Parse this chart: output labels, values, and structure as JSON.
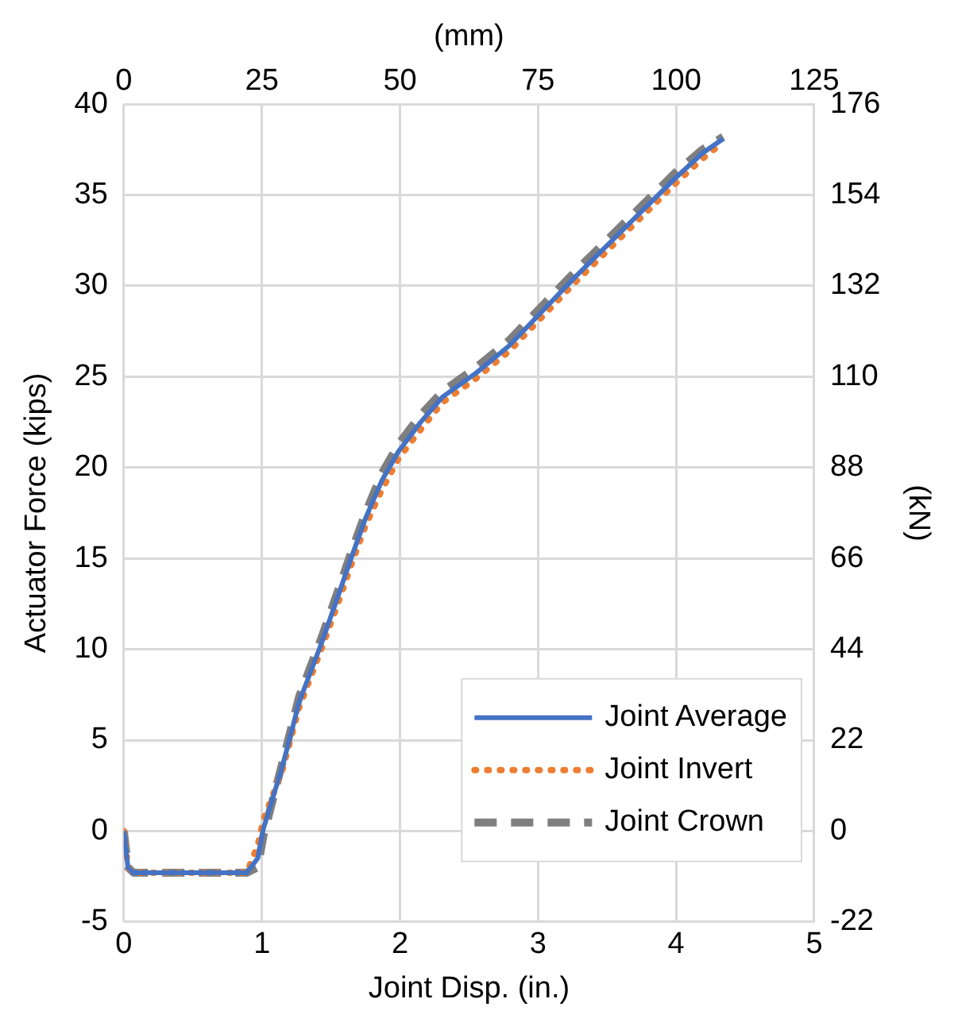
{
  "chart_data": {
    "type": "line",
    "xlabel": "Joint Disp. (in.)",
    "ylabel": "Actuator Force (kips)",
    "x2label": "(mm)",
    "y2label": "(kN)",
    "x": [
      0,
      0.03,
      0.07,
      0.3,
      0.6,
      0.89,
      0.97,
      1.01,
      1.15,
      1.27,
      1.43,
      1.55,
      1.65,
      1.75,
      1.87,
      1.99,
      2.15,
      2.31,
      2.55,
      2.79,
      3.03,
      3.27,
      3.51,
      3.75,
      3.99,
      4.19,
      4.34
    ],
    "series": [
      {
        "name": "Joint Average",
        "color": "#4472c4",
        "line_style": "solid",
        "values": [
          0,
          -2.0,
          -2.3,
          -2.3,
          -2.3,
          -2.3,
          -1.5,
          0.1,
          3.6,
          7.1,
          10.3,
          12.9,
          15.1,
          17.2,
          19.3,
          20.9,
          22.5,
          23.9,
          25.2,
          26.7,
          28.6,
          30.5,
          32.3,
          34.1,
          35.9,
          37.3,
          38.1
        ]
      },
      {
        "name": "Joint Invert",
        "color": "#ed7d31",
        "line_style": "dotted",
        "values": [
          0,
          -2.0,
          -2.3,
          -2.3,
          -2.3,
          -2.3,
          -0.8,
          0.6,
          3.4,
          6.8,
          10.0,
          12.5,
          14.7,
          16.8,
          18.8,
          20.5,
          22.1,
          23.6,
          24.9,
          26.4,
          28.3,
          30.2,
          32.0,
          33.8,
          35.6,
          37.0,
          37.9
        ]
      },
      {
        "name": "Joint Crown",
        "color": "#7f7f7f",
        "line_style": "dashed",
        "values": [
          0,
          -2.0,
          -2.3,
          -2.3,
          -2.3,
          -2.3,
          -2.0,
          -0.3,
          3.8,
          7.4,
          10.6,
          13.2,
          15.4,
          17.5,
          19.7,
          21.3,
          22.9,
          24.2,
          25.5,
          27.0,
          28.9,
          30.8,
          32.6,
          34.4,
          36.2,
          37.5,
          38.2
        ]
      }
    ],
    "xlim": [
      0,
      5
    ],
    "xticks": [
      0,
      1,
      2,
      3,
      4,
      5
    ],
    "ylim": [
      -5,
      40
    ],
    "yticks": [
      -5,
      0,
      5,
      10,
      15,
      20,
      25,
      30,
      35,
      40
    ],
    "x2lim": [
      0,
      125
    ],
    "x2ticks": [
      0,
      25,
      50,
      75,
      100,
      125
    ],
    "y2lim": [
      -22,
      176
    ],
    "y2ticks": [
      -22,
      0,
      22,
      44,
      66,
      88,
      110,
      132,
      154,
      176
    ],
    "grid": true,
    "legend": "bottom right",
    "marker": "none"
  }
}
